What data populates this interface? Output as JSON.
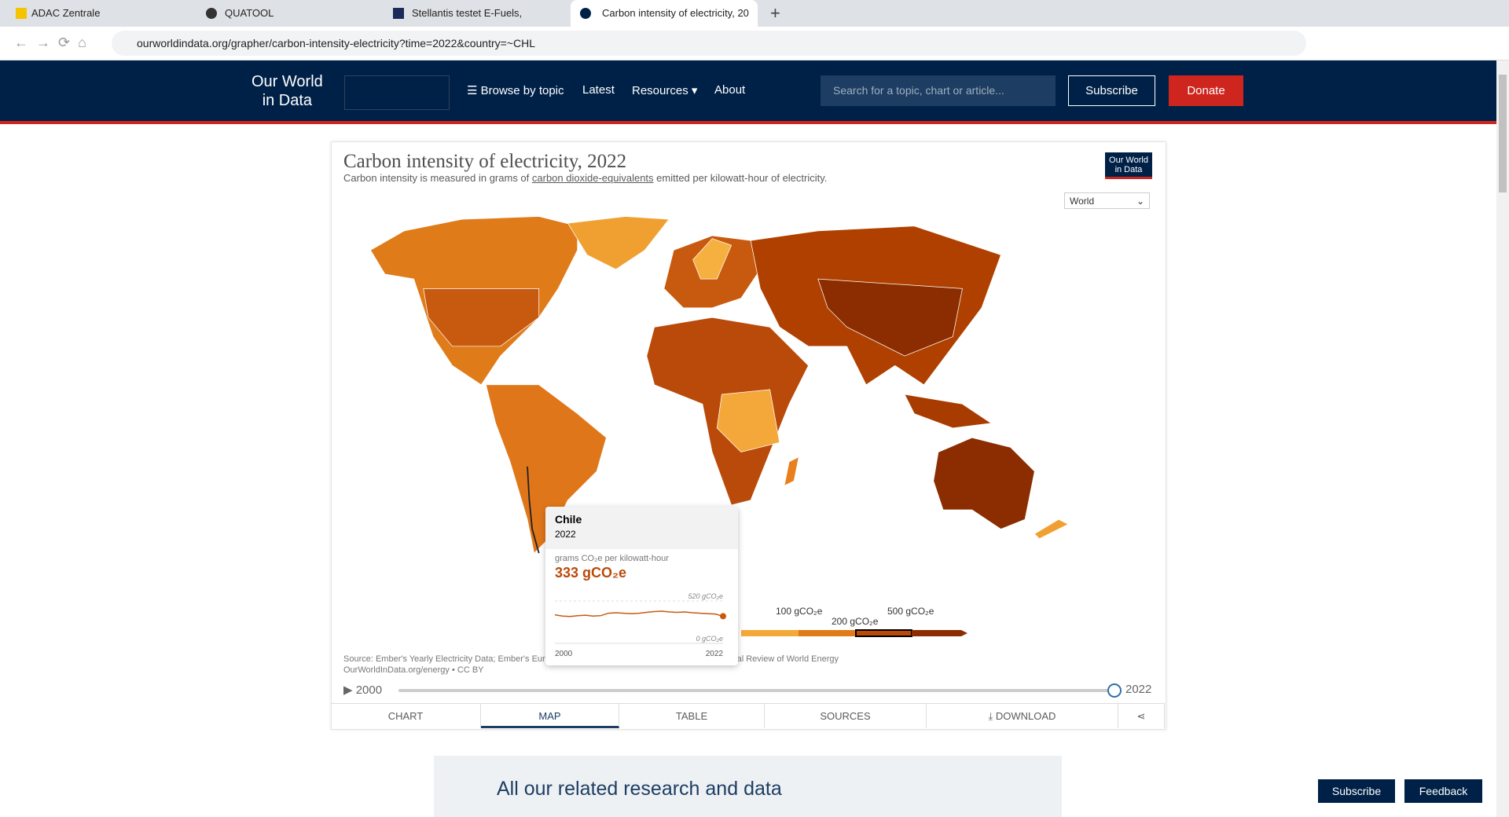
{
  "browser": {
    "tabs": [
      {
        "title": "ADAC Zentrale"
      },
      {
        "title": "QUATOOL"
      },
      {
        "title": "Stellantis testet E-Fuels, Unbedenk"
      },
      {
        "title": "Carbon intensity of electricity, 20"
      }
    ],
    "url": "ourworldindata.org/grapher/carbon-intensity-electricity?time=2022&country=~CHL"
  },
  "header": {
    "logo": [
      "Our World",
      "in Data"
    ],
    "nav": [
      "Browse by topic",
      "Latest",
      "Resources",
      "About"
    ],
    "search_placeholder": "Search for a topic, chart or article...",
    "subscribe": "Subscribe",
    "donate": "Donate"
  },
  "chart": {
    "title": "Carbon intensity of electricity, 2022",
    "subtitle": [
      "Carbon intensity is measured in grams of ",
      "carbon dioxide-equivalents",
      " emitted per kilowatt-hour of electricity."
    ],
    "logo": [
      "Our World",
      "in Data"
    ],
    "entity_select": "World",
    "legend_labels": [
      "100 gCO₂e",
      "200 gCO₂e",
      "500 gCO₂e"
    ],
    "source": [
      "Source: Ember's Yearly Electricity Data; Ember's European Electricity Review; Energy Institute Statistical Review of World Energy",
      "OurWorldInData.org/energy • CC BY"
    ],
    "timeline": {
      "start": 2000,
      "end": 2022
    },
    "tabs": [
      "CHART",
      "MAP",
      "TABLE",
      "SOURCES",
      "DOWNLOAD"
    ]
  },
  "tooltip": {
    "entity": "Chile",
    "year": "2022",
    "metric": "grams CO₂e per kilowatt-hour",
    "value": 333,
    "value_label": "333 gCO₂e",
    "sparkline": {
      "x": [
        2000,
        2001,
        2002,
        2003,
        2004,
        2005,
        2006,
        2007,
        2008,
        2009,
        2010,
        2011,
        2012,
        2013,
        2014,
        2015,
        2016,
        2017,
        2018,
        2019,
        2020,
        2021,
        2022
      ],
      "values": [
        350,
        335,
        330,
        340,
        345,
        335,
        340,
        370,
        375,
        370,
        365,
        370,
        380,
        390,
        395,
        385,
        380,
        385,
        375,
        370,
        365,
        360,
        333
      ],
      "ylim": [
        0,
        520
      ],
      "yticks": [
        {
          "value": 520,
          "label": "520 gCO₂e"
        },
        {
          "value": 0,
          "label": "0 gCO₂e"
        }
      ],
      "xlim": [
        2000,
        2022
      ]
    }
  },
  "related": {
    "heading": "All our related research and data"
  },
  "floating": [
    "Subscribe",
    "Feedback"
  ]
}
